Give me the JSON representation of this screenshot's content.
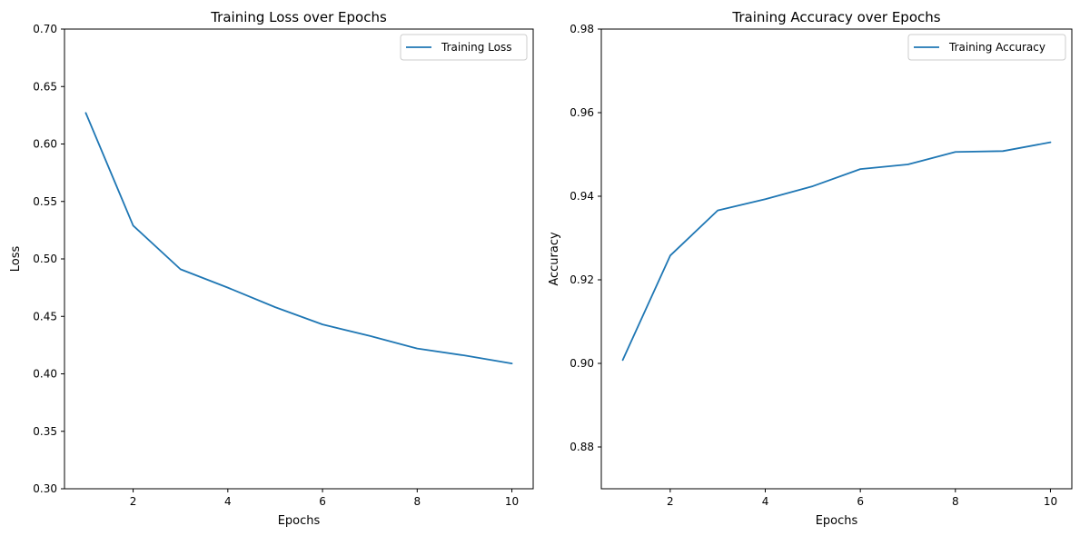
{
  "chart_data": [
    {
      "type": "line",
      "title": "Training Loss over Epochs",
      "xlabel": "Epochs",
      "ylabel": "Loss",
      "xlim": [
        0.55,
        10.45
      ],
      "ylim": [
        0.3,
        0.7
      ],
      "xticks": [
        2,
        4,
        6,
        8,
        10
      ],
      "yticks": [
        0.3,
        0.35,
        0.4,
        0.45,
        0.5,
        0.55,
        0.6,
        0.65,
        0.7
      ],
      "ytick_labels": [
        "0.30",
        "0.35",
        "0.40",
        "0.45",
        "0.50",
        "0.55",
        "0.60",
        "0.65",
        "0.70"
      ],
      "x": [
        1,
        2,
        3,
        4,
        5,
        6,
        7,
        8,
        9,
        10
      ],
      "series": [
        {
          "name": "Training Loss",
          "color": "#1f77b4",
          "values": [
            0.627,
            0.529,
            0.491,
            0.475,
            0.458,
            0.443,
            0.433,
            0.422,
            0.416,
            0.409
          ]
        }
      ],
      "legend": "top-right",
      "grid": false
    },
    {
      "type": "line",
      "title": "Training Accuracy over Epochs",
      "xlabel": "Epochs",
      "ylabel": "Accuracy",
      "xlim": [
        0.55,
        10.45
      ],
      "ylim": [
        0.87,
        0.98
      ],
      "xticks": [
        2,
        4,
        6,
        8,
        10
      ],
      "yticks": [
        0.88,
        0.9,
        0.92,
        0.94,
        0.96,
        0.98
      ],
      "ytick_labels": [
        "0.88",
        "0.90",
        "0.92",
        "0.94",
        "0.96",
        "0.98"
      ],
      "x": [
        1,
        2,
        3,
        4,
        5,
        6,
        7,
        8,
        9,
        10
      ],
      "series": [
        {
          "name": "Training Accuracy",
          "color": "#1f77b4",
          "values": [
            0.9008,
            0.9258,
            0.9366,
            0.9393,
            0.9424,
            0.9465,
            0.9476,
            0.9506,
            0.9508,
            0.9529
          ]
        }
      ],
      "legend": "top-right",
      "grid": false
    }
  ]
}
